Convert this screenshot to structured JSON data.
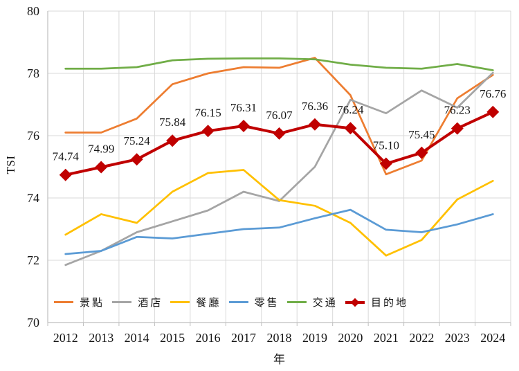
{
  "chart_data": {
    "type": "line",
    "title": "",
    "xlabel": "年",
    "ylabel": "TSI",
    "ylim": [
      70,
      80
    ],
    "yticks": [
      70,
      72,
      74,
      76,
      78,
      80
    ],
    "grid": true,
    "legend_position": "bottom-inside",
    "categories": [
      "2012",
      "2013",
      "2014",
      "2015",
      "2016",
      "2017",
      "2018",
      "2019",
      "2020",
      "2021",
      "2022",
      "2023",
      "2024"
    ],
    "series": [
      {
        "name": "景點",
        "color": "#ED7D31",
        "values": [
          76.1,
          76.1,
          76.55,
          77.65,
          78.0,
          78.2,
          78.18,
          78.5,
          77.3,
          74.76,
          75.2,
          77.2,
          77.95
        ]
      },
      {
        "name": "酒店",
        "color": "#A5A5A5",
        "values": [
          71.85,
          72.3,
          72.9,
          73.25,
          73.6,
          74.2,
          73.9,
          75.0,
          77.15,
          76.72,
          77.45,
          76.9,
          78.02
        ]
      },
      {
        "name": "餐廳",
        "color": "#FFC000",
        "values": [
          72.82,
          73.48,
          73.2,
          74.2,
          74.8,
          74.9,
          73.93,
          73.75,
          73.2,
          72.15,
          72.65,
          73.95,
          74.55
        ]
      },
      {
        "name": "零售",
        "color": "#5B9BD5",
        "values": [
          72.2,
          72.3,
          72.75,
          72.7,
          72.85,
          73.0,
          73.05,
          73.35,
          73.62,
          72.98,
          72.9,
          73.15,
          73.48
        ]
      },
      {
        "name": "交通",
        "color": "#70AD47",
        "values": [
          78.15,
          78.15,
          78.2,
          78.42,
          78.47,
          78.48,
          78.48,
          78.45,
          78.28,
          78.18,
          78.15,
          78.3,
          78.1
        ]
      },
      {
        "name": "目的地",
        "color": "#C00000",
        "marker": "diamond",
        "line_width": 4,
        "values": [
          74.74,
          74.99,
          75.24,
          75.84,
          76.15,
          76.31,
          76.07,
          76.36,
          76.24,
          75.1,
          75.45,
          76.23,
          76.76
        ],
        "data_labels": [
          "74.74",
          "74.99",
          "75.24",
          "75.84",
          "76.15",
          "76.31",
          "76.07",
          "76.36",
          "76.24",
          "75.10",
          "75.45",
          "76.23",
          "76.76"
        ]
      }
    ]
  }
}
